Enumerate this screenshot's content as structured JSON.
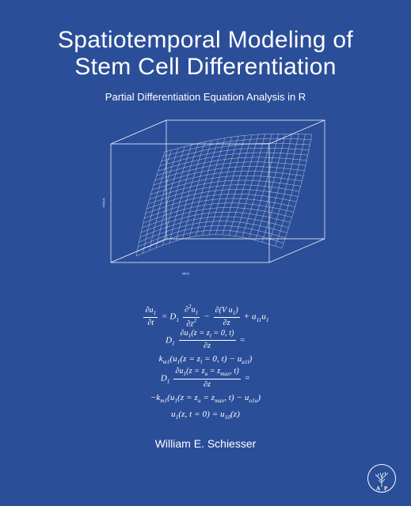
{
  "cover": {
    "background_color": "#2b4e99",
    "text_color": "#ffffff",
    "title_line1": "Spatiotemporal Modeling of",
    "title_line2": "Stem Cell Differentiation",
    "title_fontsize": 30,
    "title_fontweight": 300,
    "subtitle": "Partial Differentiation Equation Analysis in R",
    "subtitle_fontsize": 13,
    "author": "William E. Schiesser",
    "author_fontsize": 14
  },
  "plot3d": {
    "type": "3d-surface-wireframe",
    "box_stroke": "#ffffff",
    "box_stroke_width": 0.7,
    "mesh_stroke": "#ffffff",
    "mesh_stroke_width": 0.4,
    "mesh_opacity": 0.85,
    "grid_nx": 22,
    "grid_ny": 22,
    "x_axis_label": "x(t,x)",
    "z_axis_label": "u1(t,z)",
    "outer_cube": [
      [
        80,
        40
      ],
      [
        280,
        40
      ],
      [
        280,
        190
      ],
      [
        80,
        190
      ],
      [
        150,
        10
      ],
      [
        350,
        10
      ],
      [
        350,
        160
      ],
      [
        150,
        160
      ]
    ],
    "surface_corners": {
      "bl": [
        112,
        182
      ],
      "br": [
        296,
        172
      ],
      "tr": [
        334,
        28
      ],
      "tl": [
        148,
        50
      ]
    }
  },
  "equations": {
    "fontsize": 11,
    "font_family": "Georgia",
    "color": "#ffffff",
    "lines": [
      "∂u₁/∂t = D₁ ∂²u₁/∂z² − ∂(Vu₁)/∂z + a₁₁u₁",
      "D₁ ∂u₁(z = z_l = 0, t)/∂z =",
      "k_{m1}(u₁(z = z_l = 0, t) − u_{a1l})",
      "D₁ ∂u₁(z = z_u = z_{max}, t)/∂z =",
      "−k_{m1}(u₁(z = z_u = z_{max}, t) − u_{o1u})",
      "u₁(z, t = 0) = u₁₀(z)"
    ]
  },
  "publisher_logo": {
    "name": "academic-press-tree-logo",
    "letters": "AP",
    "ring_color": "#ffffff",
    "fill": "none"
  }
}
